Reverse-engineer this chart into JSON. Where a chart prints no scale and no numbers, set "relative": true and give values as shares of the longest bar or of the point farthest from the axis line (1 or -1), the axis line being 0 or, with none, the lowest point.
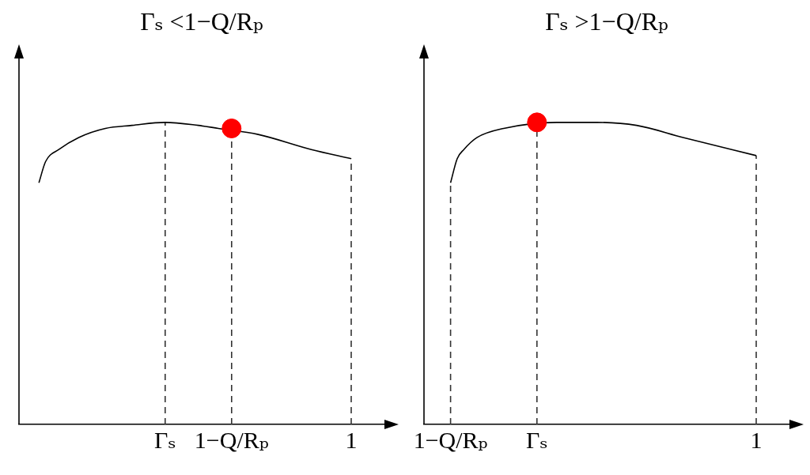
{
  "chart_data": [
    {
      "type": "line",
      "title": "Γₛ <1−Q/Rₚ",
      "relative": true,
      "categories": [
        null,
        null,
        null,
        null,
        null,
        null,
        null,
        null,
        null,
        null,
        null,
        null,
        null,
        null,
        null,
        null,
        null,
        null,
        null,
        null,
        null,
        null,
        "Γₛ",
        null,
        null,
        null,
        null,
        null,
        null,
        null,
        null,
        null,
        "1−Q/Rₚ",
        null,
        null,
        null,
        null,
        null,
        null,
        null,
        null,
        null,
        null,
        null,
        null,
        null,
        null,
        null,
        null,
        null,
        "1",
        null,
        null,
        null,
        null,
        null
      ],
      "series": [
        {
          "color": "#000000",
          "values": [
            null,
            null,
            null,
            0.8,
            0.87,
            null,
            0.91,
            null,
            null,
            0.95,
            null,
            null,
            null,
            0.98,
            null,
            null,
            null,
            0.99,
            null,
            null,
            null,
            null,
            1,
            null,
            null,
            null,
            null,
            0.99,
            null,
            null,
            0.98,
            null,
            null,
            null,
            null,
            null,
            0.96,
            null,
            null,
            null,
            null,
            null,
            null,
            null,
            0.91,
            null,
            null,
            null,
            null,
            null,
            0.88,
            null,
            null,
            null,
            null,
            null
          ]
        },
        {
          "type": "scatter",
          "color": "#ff0000",
          "marker": "circle",
          "values": [
            null,
            null,
            null,
            null,
            null,
            null,
            null,
            null,
            null,
            null,
            null,
            null,
            null,
            null,
            null,
            null,
            null,
            null,
            null,
            null,
            null,
            null,
            null,
            null,
            null,
            null,
            null,
            null,
            null,
            null,
            null,
            null,
            0.98,
            null,
            null,
            null,
            null,
            null,
            null,
            null,
            null,
            null,
            null,
            null,
            null,
            null,
            null,
            null,
            null,
            null,
            null,
            null,
            null,
            null,
            null,
            null
          ]
        }
      ],
      "ref_lines": [
        {
          "axis": "x",
          "value": "Γₛ",
          "line_style": "dashed"
        },
        {
          "axis": "x",
          "value": "1−Q/Rₚ",
          "line_style": "dashed"
        },
        {
          "axis": "x",
          "value": "1",
          "line_style": "dashed"
        }
      ]
    },
    {
      "type": "line",
      "title": "Γₛ >1−Q/Rₚ",
      "relative": true,
      "categories": [
        null,
        null,
        null,
        null,
        "1−Q/Rₚ",
        null,
        null,
        null,
        null,
        null,
        null,
        null,
        null,
        null,
        null,
        null,
        null,
        "Γₛ",
        null,
        null,
        null,
        null,
        null,
        null,
        null,
        null,
        null,
        null,
        null,
        null,
        null,
        null,
        null,
        null,
        null,
        null,
        null,
        null,
        null,
        null,
        null,
        null,
        null,
        null,
        null,
        null,
        null,
        null,
        null,
        null,
        "1",
        null,
        null,
        null,
        null,
        null
      ],
      "series": [
        {
          "color": "#000000",
          "values": [
            null,
            null,
            null,
            null,
            0.8,
            0.88,
            0.91,
            null,
            0.95,
            null,
            null,
            null,
            0.98,
            null,
            null,
            null,
            null,
            null,
            null,
            null,
            1,
            null,
            null,
            null,
            null,
            null,
            1,
            null,
            null,
            null,
            null,
            null,
            0.99,
            null,
            null,
            null,
            null,
            null,
            null,
            0.95,
            null,
            null,
            null,
            null,
            null,
            null,
            null,
            null,
            null,
            null,
            0.89,
            null,
            null,
            null,
            null,
            null
          ]
        },
        {
          "type": "scatter",
          "color": "#ff0000",
          "marker": "circle",
          "values": [
            null,
            null,
            null,
            null,
            null,
            null,
            null,
            null,
            null,
            null,
            null,
            null,
            null,
            null,
            null,
            null,
            null,
            1,
            null,
            null,
            null,
            null,
            null,
            null,
            null,
            null,
            null,
            null,
            null,
            null,
            null,
            null,
            null,
            null,
            null,
            null,
            null,
            null,
            null,
            null,
            null,
            null,
            null,
            null,
            null,
            null,
            null,
            null,
            null,
            null,
            null,
            null,
            null,
            null,
            null,
            null
          ]
        }
      ],
      "ref_lines": [
        {
          "axis": "x",
          "value": "1−Q/Rₚ",
          "line_style": "dashed"
        },
        {
          "axis": "x",
          "value": "Γₛ",
          "line_style": "dashed"
        },
        {
          "axis": "x",
          "value": "1",
          "line_style": "dashed"
        }
      ]
    }
  ]
}
